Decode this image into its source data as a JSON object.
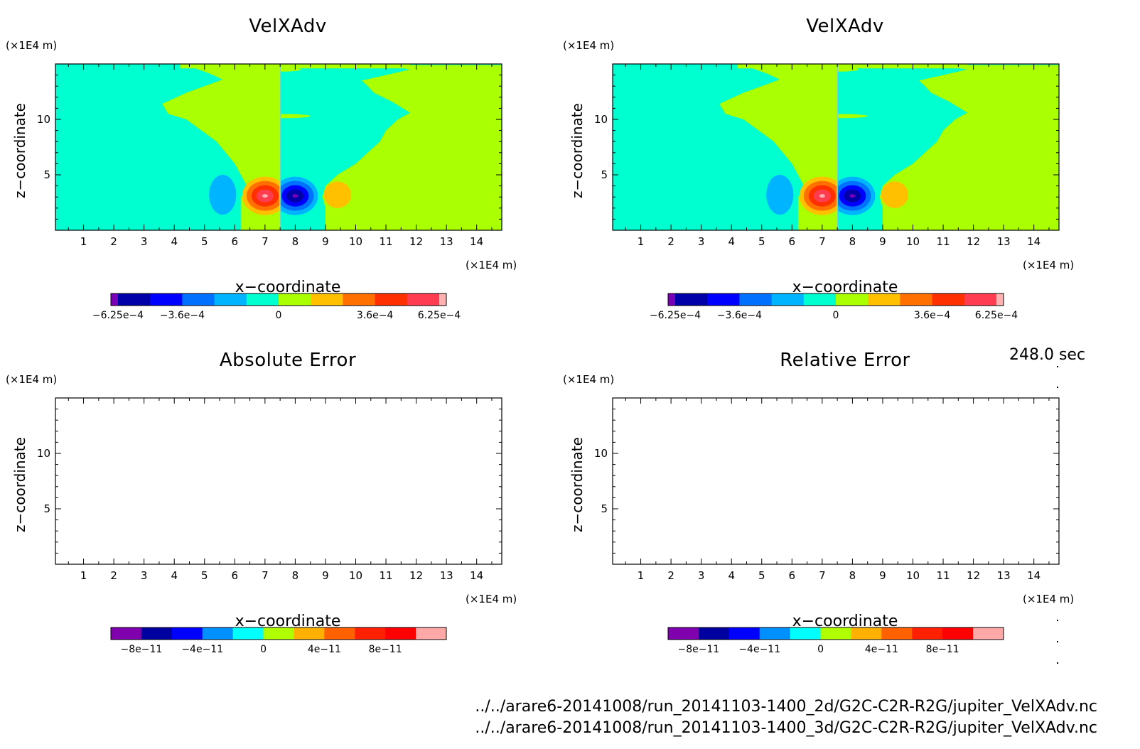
{
  "time_label": "248.0 sec",
  "files": [
    "../../arare6-20141008/run_20141103-1400_2d/G2C-C2R-R2G/jupiter_VelXAdv.nc",
    "../../arare6-20141008/run_20141103-1400_3d/G2C-C2R-R2G/jupiter_VelXAdv.nc"
  ],
  "chart_data": [
    {
      "type": "heatmap",
      "title": "VelXAdv",
      "xlabel": "x−coordinate",
      "ylabel": "z−coordinate",
      "x_unit": "(×1E4 m)",
      "y_unit": "(×1E4 m)",
      "xlim": [
        0.07,
        14.83
      ],
      "ylim": [
        0,
        15
      ],
      "x_ticks": [
        "1",
        "2",
        "3",
        "4",
        "5",
        "6",
        "7",
        "8",
        "9",
        "10",
        "11",
        "12",
        "13",
        "14"
      ],
      "y_ticks": [
        "5",
        "10"
      ],
      "colorbar": {
        "colors": [
          "#7a00b8",
          "#0000a8",
          "#0000ff",
          "#0070ff",
          "#00b4ff",
          "#00ffd0",
          "#aaff00",
          "#ffc000",
          "#ff7000",
          "#ff3000",
          "#ff3c50",
          "#ffb0b0"
        ],
        "tick_labels": [
          "−6.25e−4",
          "−3.6e−4",
          "0",
          "3.6e−4",
          "6.25e−4"
        ]
      },
      "features": {
        "negative_extremum": {
          "x": 8.0,
          "z": 3.1,
          "value": -0.000625
        },
        "positive_extremum": {
          "x": 7.0,
          "z": 3.1,
          "value": 0.000625
        },
        "weak_negative_lobe": {
          "x": 5.6,
          "z": 3.2
        },
        "weak_positive_lobe": {
          "x": 9.4,
          "z": 3.2
        },
        "dividing_line_x": 7.5
      }
    },
    {
      "type": "heatmap",
      "title": "VelXAdv",
      "xlabel": "x−coordinate",
      "ylabel": "z−coordinate",
      "x_unit": "(×1E4 m)",
      "y_unit": "(×1E4 m)",
      "xlim": [
        0.07,
        14.83
      ],
      "ylim": [
        0,
        15
      ],
      "x_ticks": [
        "1",
        "2",
        "3",
        "4",
        "5",
        "6",
        "7",
        "8",
        "9",
        "10",
        "11",
        "12",
        "13",
        "14"
      ],
      "y_ticks": [
        "5",
        "10"
      ],
      "colorbar": {
        "colors": [
          "#7a00b8",
          "#0000a8",
          "#0000ff",
          "#0070ff",
          "#00b4ff",
          "#00ffd0",
          "#aaff00",
          "#ffc000",
          "#ff7000",
          "#ff3000",
          "#ff3c50",
          "#ffb0b0"
        ],
        "tick_labels": [
          "−6.25e−4",
          "−3.6e−4",
          "0",
          "3.6e−4",
          "6.25e−4"
        ]
      },
      "features": {
        "negative_extremum": {
          "x": 8.0,
          "z": 3.1,
          "value": -0.000625
        },
        "positive_extremum": {
          "x": 7.0,
          "z": 3.1,
          "value": 0.000625
        },
        "weak_negative_lobe": {
          "x": 5.6,
          "z": 3.2
        },
        "weak_positive_lobe": {
          "x": 9.4,
          "z": 3.2
        },
        "dividing_line_x": 7.5
      }
    },
    {
      "type": "heatmap",
      "title": "Absolute Error",
      "xlabel": "x−coordinate",
      "ylabel": "z−coordinate",
      "x_unit": "(×1E4 m)",
      "y_unit": "(×1E4 m)",
      "xlim": [
        0.07,
        14.83
      ],
      "ylim": [
        0,
        15
      ],
      "x_ticks": [
        "1",
        "2",
        "3",
        "4",
        "5",
        "6",
        "7",
        "8",
        "9",
        "10",
        "11",
        "12",
        "13",
        "14"
      ],
      "y_ticks": [
        "5",
        "10"
      ],
      "colorbar": {
        "colors": [
          "#8000b0",
          "#0000a0",
          "#0000ff",
          "#0090ff",
          "#00ffff",
          "#b0ff00",
          "#ffb000",
          "#ff6000",
          "#ff2000",
          "#ff0000",
          "#ffa8a8"
        ],
        "tick_labels": [
          "−8e−11",
          "−4e−11",
          "0",
          "4e−11",
          "8e−11"
        ]
      },
      "empty": true
    },
    {
      "type": "heatmap",
      "title": "Relative Error",
      "xlabel": "x−coordinate",
      "ylabel": "z−coordinate",
      "x_unit": "(×1E4 m)",
      "y_unit": "(×1E4 m)",
      "xlim": [
        0.07,
        14.83
      ],
      "ylim": [
        0,
        15
      ],
      "x_ticks": [
        "1",
        "2",
        "3",
        "4",
        "5",
        "6",
        "7",
        "8",
        "9",
        "10",
        "11",
        "12",
        "13",
        "14"
      ],
      "y_ticks": [
        "5",
        "10"
      ],
      "colorbar": {
        "colors": [
          "#8000b0",
          "#0000a0",
          "#0000ff",
          "#0090ff",
          "#00ffff",
          "#b0ff00",
          "#ffb000",
          "#ff6000",
          "#ff2000",
          "#ff0000",
          "#ffa8a8"
        ],
        "tick_labels": [
          "−8e−11",
          "−4e−11",
          "0",
          "4e−11",
          "8e−11"
        ]
      },
      "empty": true
    }
  ]
}
